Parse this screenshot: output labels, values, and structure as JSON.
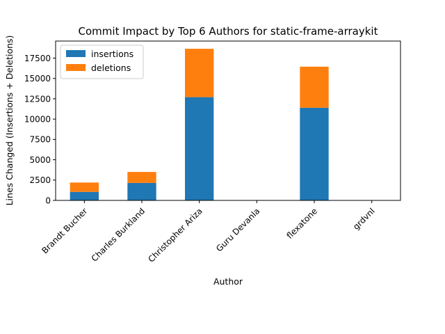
{
  "chart_data": {
    "type": "bar",
    "stacked": true,
    "title": "Commit Impact by Top 6 Authors for static-frame-arraykit",
    "xlabel": "Author",
    "ylabel": "Lines Changed (Insertions + Deletions)",
    "categories": [
      "Brandt Bucher",
      "Charles Burkland",
      "Christopher Ariza",
      "Guru Devanla",
      "flexatone",
      "grdvnl"
    ],
    "series": [
      {
        "name": "insertions",
        "color": "#1f77b4",
        "values": [
          1050,
          2150,
          12700,
          0,
          11400,
          0
        ]
      },
      {
        "name": "deletions",
        "color": "#ff7f0e",
        "values": [
          1150,
          1350,
          5950,
          0,
          5050,
          0
        ]
      }
    ],
    "ylim": [
      0,
      19600
    ],
    "yticks": [
      0,
      2500,
      5000,
      7500,
      10000,
      12500,
      15000,
      17500
    ],
    "ytick_labels": [
      "0",
      "2500",
      "5000",
      "7500",
      "10000",
      "12500",
      "15000",
      "17500"
    ],
    "grid": false,
    "legend_position": "upper-left"
  }
}
